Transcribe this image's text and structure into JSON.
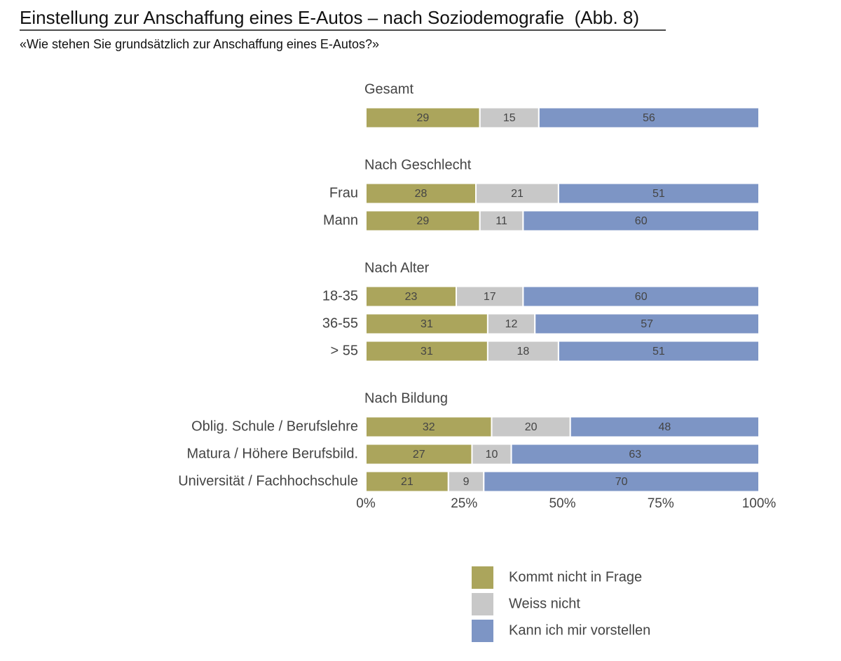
{
  "chart_data": {
    "type": "stacked-bar",
    "title": "Einstellung zur Anschaffung eines E-Autos – nach Soziodemografie  (Abb. 8)",
    "subtitle": "«Wie stehen Sie grundsätzlich zur Anschaffung eines E-Autos?»",
    "groups": [
      {
        "title": "Gesamt",
        "categories": [
          null
        ]
      },
      {
        "title": "Nach Geschlecht",
        "categories": [
          "Frau",
          "Mann"
        ]
      },
      {
        "title": "Nach Alter",
        "categories": [
          "18-35",
          "36-55",
          "> 55"
        ]
      },
      {
        "title": "Nach Bildung",
        "categories": [
          "Oblig. Schule / Berufslehre",
          "Matura / Höhere Berufsbild.",
          "Universität / Fachhochschule"
        ]
      }
    ],
    "series": [
      {
        "name": "Kommt nicht in Frage",
        "color": "#aba55c",
        "values": [
          29,
          28,
          29,
          23,
          31,
          31,
          32,
          27,
          21
        ]
      },
      {
        "name": "Weiss nicht",
        "color": "#c8c8c8",
        "values": [
          15,
          21,
          11,
          17,
          12,
          18,
          20,
          10,
          9
        ]
      },
      {
        "name": "Kann ich mir vorstellen",
        "color": "#7d95c5",
        "values": [
          56,
          51,
          60,
          60,
          57,
          51,
          48,
          63,
          70
        ]
      }
    ],
    "xlim": [
      0,
      100
    ],
    "xticks": [
      {
        "value": 0,
        "label": "0%"
      },
      {
        "value": 25,
        "label": "25%"
      },
      {
        "value": 50,
        "label": "50%"
      },
      {
        "value": 75,
        "label": "75%"
      },
      {
        "value": 100,
        "label": "100%"
      }
    ]
  }
}
